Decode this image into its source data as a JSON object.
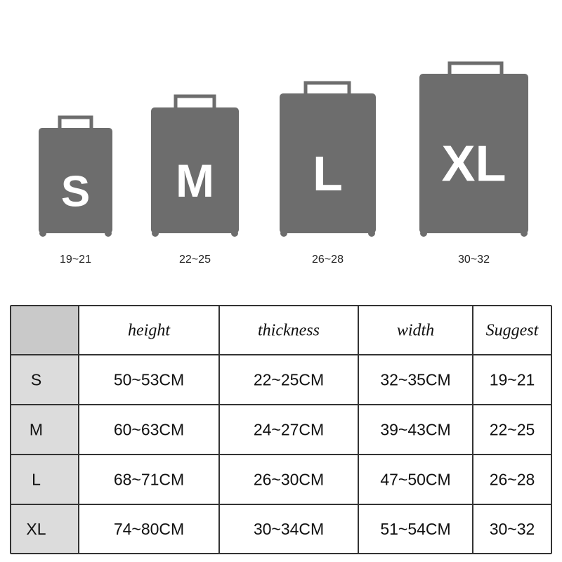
{
  "suitcases": [
    {
      "size": "S",
      "range": "19~21"
    },
    {
      "size": "M",
      "range": "22~25"
    },
    {
      "size": "L",
      "range": "26~28"
    },
    {
      "size": "XL",
      "range": "30~32"
    }
  ],
  "table": {
    "header": [
      "height",
      "thickness",
      "width",
      "Suggest"
    ],
    "rows": [
      [
        "S",
        "50~53CM",
        "22~25CM",
        "32~35CM",
        "19~21"
      ],
      [
        "M",
        "60~63CM",
        "24~27CM",
        "39~43CM",
        "22~25"
      ],
      [
        "L",
        "68~71CM",
        "26~30CM",
        "47~50CM",
        "26~28"
      ],
      [
        "XL",
        "74~80CM",
        "30~34CM",
        "51~54CM",
        "30~32"
      ]
    ]
  }
}
